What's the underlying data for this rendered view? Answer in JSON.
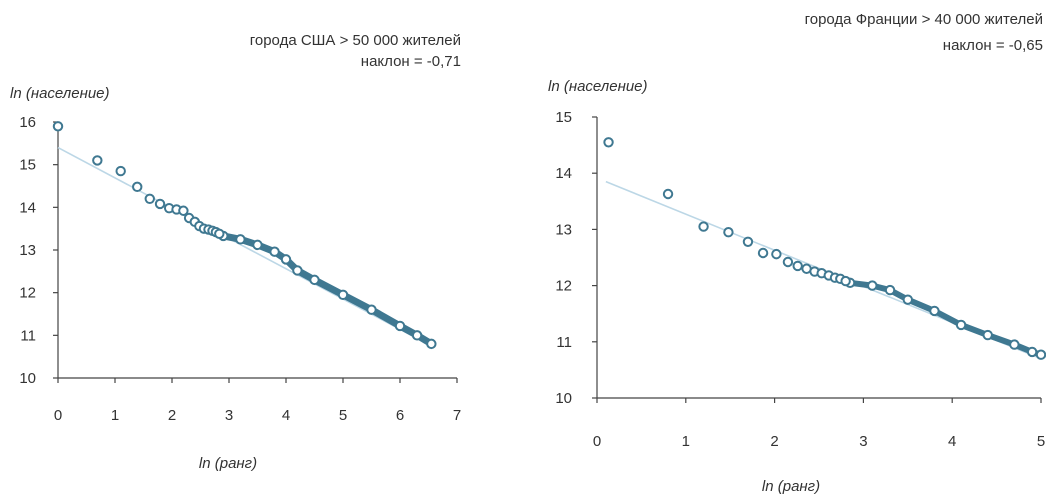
{
  "chart_data": [
    {
      "type": "scatter",
      "title_lines": [
        "города США  > 50 000 жителей",
        "наклон = -0,71"
      ],
      "xlabel": "ln (ранг)",
      "ylabel": "ln (население)",
      "xlim": [
        0,
        7
      ],
      "ylim": [
        10,
        16
      ],
      "x_ticks": [
        "0",
        "1",
        "2",
        "3",
        "4",
        "5",
        "6",
        "7"
      ],
      "y_ticks": [
        "10",
        "11",
        "12",
        "13",
        "14",
        "15",
        "16"
      ],
      "trend_line": {
        "slope": -0.71,
        "x": [
          0,
          6.55
        ],
        "y": [
          15.4,
          10.75
        ]
      },
      "points": [
        {
          "x": 0.0,
          "y": 15.9
        },
        {
          "x": 0.69,
          "y": 15.1
        },
        {
          "x": 1.1,
          "y": 14.85
        },
        {
          "x": 1.39,
          "y": 14.48
        },
        {
          "x": 1.61,
          "y": 14.2
        },
        {
          "x": 1.79,
          "y": 14.08
        },
        {
          "x": 1.95,
          "y": 13.98
        },
        {
          "x": 2.08,
          "y": 13.95
        },
        {
          "x": 2.2,
          "y": 13.92
        },
        {
          "x": 2.3,
          "y": 13.75
        },
        {
          "x": 2.4,
          "y": 13.66
        },
        {
          "x": 2.48,
          "y": 13.56
        },
        {
          "x": 2.56,
          "y": 13.5
        },
        {
          "x": 2.64,
          "y": 13.48
        },
        {
          "x": 2.71,
          "y": 13.45
        },
        {
          "x": 2.77,
          "y": 13.42
        },
        {
          "x": 2.83,
          "y": 13.38
        }
      ],
      "dense_band": [
        {
          "x": 2.9,
          "y": 13.33
        },
        {
          "x": 3.2,
          "y": 13.25
        },
        {
          "x": 3.5,
          "y": 13.12
        },
        {
          "x": 3.8,
          "y": 12.96
        },
        {
          "x": 4.0,
          "y": 12.78
        },
        {
          "x": 4.2,
          "y": 12.52
        },
        {
          "x": 4.5,
          "y": 12.3
        },
        {
          "x": 5.0,
          "y": 11.95
        },
        {
          "x": 5.5,
          "y": 11.6
        },
        {
          "x": 6.0,
          "y": 11.22
        },
        {
          "x": 6.3,
          "y": 11.0
        },
        {
          "x": 6.55,
          "y": 10.8
        }
      ]
    },
    {
      "type": "scatter",
      "title_lines": [
        "города Франции > 40 000 жителей",
        "наклон = -0,65"
      ],
      "xlabel": "ln (ранг)",
      "ylabel": "ln (население)",
      "xlim": [
        0,
        5
      ],
      "ylim": [
        10,
        15
      ],
      "x_ticks": [
        "0",
        "1",
        "2",
        "3",
        "4",
        "5"
      ],
      "y_ticks": [
        "10",
        "11",
        "12",
        "13",
        "14",
        "15"
      ],
      "trend_line": {
        "slope": -0.65,
        "x": [
          0.1,
          5.0
        ],
        "y": [
          13.85,
          10.7
        ]
      },
      "points": [
        {
          "x": 0.13,
          "y": 14.55
        },
        {
          "x": 0.8,
          "y": 13.63
        },
        {
          "x": 1.2,
          "y": 13.05
        },
        {
          "x": 1.48,
          "y": 12.95
        },
        {
          "x": 1.7,
          "y": 12.78
        },
        {
          "x": 1.87,
          "y": 12.58
        },
        {
          "x": 2.02,
          "y": 12.56
        },
        {
          "x": 2.15,
          "y": 12.42
        },
        {
          "x": 2.26,
          "y": 12.35
        },
        {
          "x": 2.36,
          "y": 12.3
        },
        {
          "x": 2.45,
          "y": 12.25
        },
        {
          "x": 2.53,
          "y": 12.22
        },
        {
          "x": 2.61,
          "y": 12.18
        },
        {
          "x": 2.68,
          "y": 12.14
        },
        {
          "x": 2.74,
          "y": 12.12
        },
        {
          "x": 2.8,
          "y": 12.08
        }
      ],
      "dense_band": [
        {
          "x": 2.85,
          "y": 12.05
        },
        {
          "x": 3.1,
          "y": 12.0
        },
        {
          "x": 3.3,
          "y": 11.92
        },
        {
          "x": 3.5,
          "y": 11.75
        },
        {
          "x": 3.8,
          "y": 11.55
        },
        {
          "x": 4.1,
          "y": 11.3
        },
        {
          "x": 4.4,
          "y": 11.12
        },
        {
          "x": 4.7,
          "y": 10.95
        },
        {
          "x": 4.9,
          "y": 10.82
        },
        {
          "x": 5.0,
          "y": 10.77
        }
      ]
    }
  ]
}
